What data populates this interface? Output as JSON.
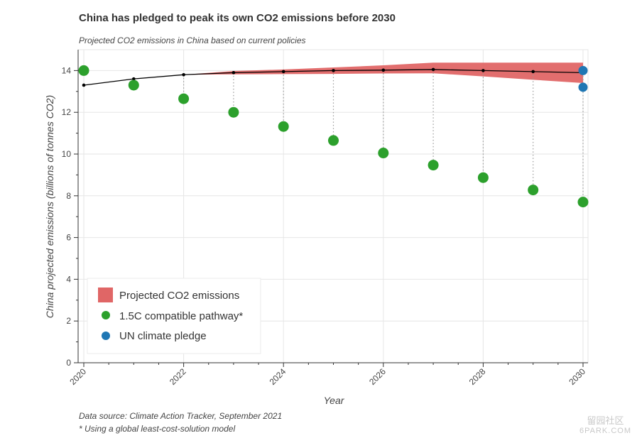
{
  "title": "China has pledged to peak its own CO2 emissions before 2030",
  "subtitle": "Projected CO2 emissions in China based on current policies",
  "footnotes": {
    "source": "Data source: Climate Action Tracker, September 2021",
    "model": "* Using a global least-cost-solution model"
  },
  "watermark": {
    "line1": "留园社区",
    "line2": "6PARK.COM"
  },
  "chart_data": {
    "type": "line",
    "xlabel": "Year",
    "ylabel": "China projected emissions (billions of tonnes CO2)",
    "xlim": [
      2020,
      2030
    ],
    "ylim": [
      0,
      15
    ],
    "x_ticks": [
      "2020",
      "2022",
      "2024",
      "2026",
      "2028",
      "2030"
    ],
    "y_ticks": [
      "0",
      "2",
      "4",
      "6",
      "8",
      "10",
      "12",
      "14"
    ],
    "grid": true,
    "legend_position": "bottom-left",
    "legend": [
      {
        "label": "Projected CO2 emissions",
        "symbol": "square",
        "color": "#e06666"
      },
      {
        "label": "1.5C compatible pathway*",
        "symbol": "circle",
        "color": "#2ca02c"
      },
      {
        "label": "UN climate pledge",
        "symbol": "circle",
        "color": "#1f77b4"
      }
    ],
    "projected_line": {
      "x": [
        2020,
        2021,
        2022,
        2023,
        2024,
        2025,
        2026,
        2027,
        2028,
        2029,
        2030
      ],
      "y": [
        13.3,
        13.6,
        13.8,
        13.9,
        13.95,
        14.0,
        14.02,
        14.05,
        14.0,
        13.95,
        13.9
      ],
      "color": "#000000"
    },
    "projected_range": {
      "x": [
        2022,
        2023,
        2024,
        2025,
        2026,
        2027,
        2028,
        2029,
        2030
      ],
      "upper": [
        13.8,
        13.98,
        14.05,
        14.15,
        14.25,
        14.38,
        14.38,
        14.38,
        14.38
      ],
      "lower": [
        13.8,
        13.82,
        13.83,
        13.84,
        13.86,
        13.87,
        13.72,
        13.56,
        13.4
      ],
      "color": "#e06666"
    },
    "pathway_1_5c": {
      "x": [
        2020,
        2021,
        2022,
        2023,
        2024,
        2025,
        2026,
        2027,
        2028,
        2029,
        2030
      ],
      "y": [
        14.0,
        13.3,
        12.65,
        12.0,
        11.32,
        10.65,
        10.05,
        9.47,
        8.87,
        8.28,
        7.7
      ],
      "color": "#2ca02c"
    },
    "un_pledge": {
      "x": [
        2030,
        2030
      ],
      "y": [
        14.0,
        13.2
      ],
      "color": "#1f77b4"
    }
  }
}
